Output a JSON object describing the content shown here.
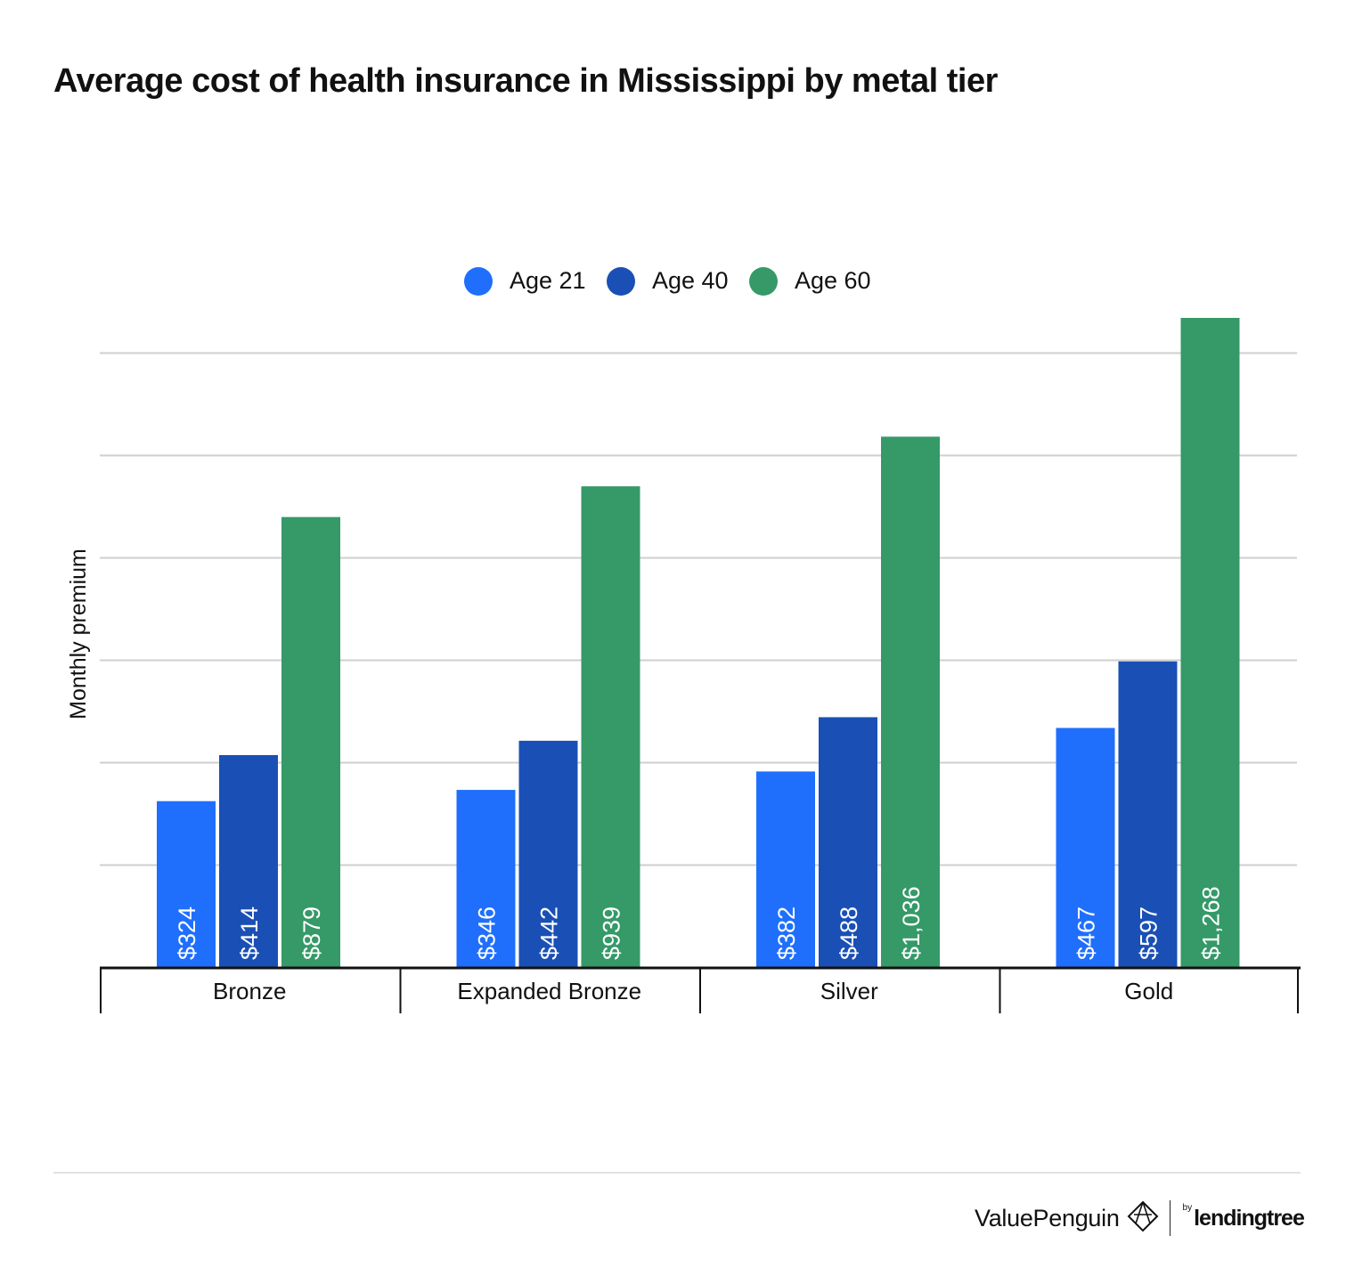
{
  "title": "Average cost of health insurance in Mississippi by metal tier",
  "chart_data": {
    "type": "bar",
    "title": "Average cost of health insurance in Mississippi by metal tier",
    "ylabel": "Monthly premium",
    "xlabel": "",
    "categories": [
      "Bronze",
      "Expanded Bronze",
      "Silver",
      "Gold"
    ],
    "series": [
      {
        "name": "Age 21",
        "color": "#1f6ffc",
        "values": [
          324,
          346,
          382,
          467
        ],
        "labels": [
          "$324",
          "$346",
          "$382",
          "$467"
        ]
      },
      {
        "name": "Age 40",
        "color": "#1a50b5",
        "values": [
          414,
          442,
          488,
          597
        ],
        "labels": [
          "$414",
          "$442",
          "$488",
          "$597"
        ]
      },
      {
        "name": "Age 60",
        "color": "#359968",
        "values": [
          879,
          939,
          1036,
          1268
        ],
        "labels": [
          "$879",
          "$939",
          "$1,036",
          "$1,268"
        ]
      }
    ],
    "ylim": [
      0,
      1268
    ],
    "gridlines": [
      200,
      400,
      600,
      800,
      1000,
      1200
    ],
    "grid": true,
    "legend": "top-center"
  },
  "branding": {
    "name": "ValuePenguin",
    "by": "by",
    "partner": "lendingtree",
    "logo_icon": "valuepenguin-diamond-icon"
  }
}
